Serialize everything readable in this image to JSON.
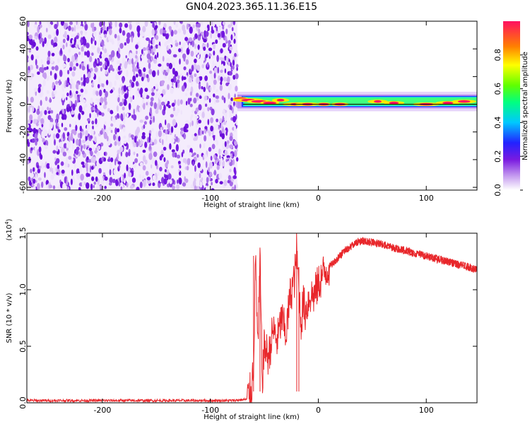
{
  "title": "GN04.2023.365.11.36.E15",
  "spectrogram": {
    "type": "heatmap",
    "xlabel": "Height of straight line (km)",
    "ylabel": "Frequency (Hz)",
    "xlim": [
      -270,
      147
    ],
    "ylim": [
      -62,
      60
    ],
    "x_ticks": [
      "-200",
      "-100",
      "0",
      "100"
    ],
    "y_ticks": [
      "60",
      "40",
      "20",
      "0",
      "-20",
      "-40",
      "-60"
    ],
    "noise_region_x": [
      -270,
      -75
    ],
    "signal_region_x": [
      -75,
      147
    ],
    "signal_band_hz": [
      -3,
      7
    ],
    "description_colormap": "rainbow"
  },
  "colorbar": {
    "label": "Normalized spectral amplitude",
    "range": [
      0,
      1
    ],
    "ticks": [
      "0.0",
      "0.2",
      "0.4",
      "0.6",
      "0.8"
    ]
  },
  "chart_data": [
    {
      "type": "heatmap",
      "title": "GN04.2023.365.11.36.E15",
      "xlabel": "Height of straight line (km)",
      "ylabel": "Frequency (Hz)",
      "xlim": [
        -270,
        147
      ],
      "ylim": [
        -62,
        60
      ],
      "grid": false
    },
    {
      "type": "line",
      "xlabel": "Height of straight line (km)",
      "ylabel": "SNR (10 * v/v)",
      "multiplier_label": "(x10",
      "multiplier_exp": "4",
      "xlim": [
        -270,
        147
      ],
      "ylim": [
        0,
        1.5
      ],
      "x_ticks": [
        "-200",
        "-100",
        "0",
        "100"
      ],
      "y_ticks": [
        "0.0",
        "0.5",
        "1.0",
        "1.5"
      ],
      "grid": false,
      "color": "#e8262a",
      "x": [
        -270,
        -250,
        -220,
        -200,
        -180,
        -150,
        -120,
        -100,
        -80,
        -66,
        -62,
        -60,
        -58,
        -56,
        -54,
        -52,
        -50,
        -46,
        -42,
        -38,
        -34,
        -30,
        -26,
        -22,
        -20,
        -18,
        -16,
        -14,
        -12,
        -8,
        -4,
        0,
        5,
        10,
        15,
        20,
        25,
        30,
        35,
        40,
        50,
        60,
        70,
        80,
        90,
        100,
        110,
        120,
        130,
        140,
        147
      ],
      "values": [
        0.02,
        0.02,
        0.02,
        0.02,
        0.02,
        0.02,
        0.02,
        0.02,
        0.02,
        0.03,
        0.12,
        0.35,
        1.3,
        0.45,
        1.28,
        0.2,
        0.5,
        0.4,
        0.65,
        0.55,
        0.75,
        0.6,
        0.95,
        1.1,
        1.35,
        1.0,
        0.7,
        0.9,
        0.8,
        0.95,
        0.95,
        1.05,
        1.15,
        1.2,
        1.25,
        1.3,
        1.35,
        1.38,
        1.42,
        1.43,
        1.42,
        1.4,
        1.37,
        1.35,
        1.32,
        1.3,
        1.27,
        1.25,
        1.22,
        1.2,
        1.17
      ]
    }
  ],
  "snr_panel": {
    "xlabel": "Height of straight line (km)",
    "ylabel": "SNR (10 * v/v)",
    "multiplier": "(x10",
    "multiplier_exp": "4",
    "multiplier_close": ")"
  }
}
